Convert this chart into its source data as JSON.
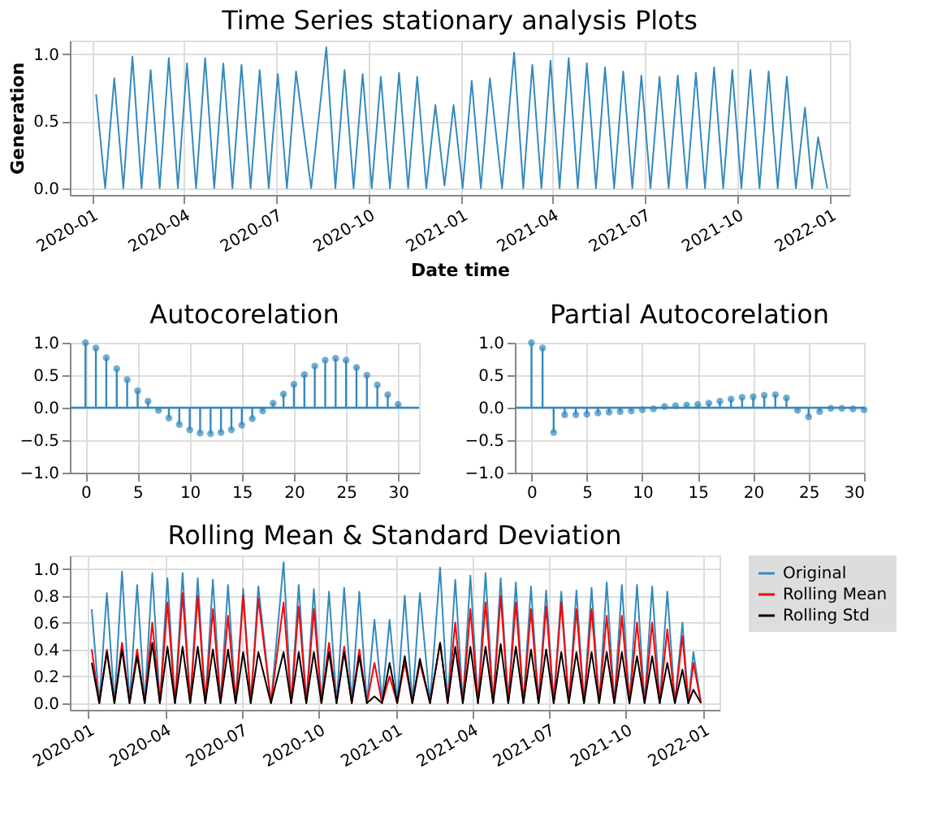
{
  "chart_data": [
    {
      "type": "line",
      "title": "Time Series stationary analysis Plots",
      "xlabel": "Date time",
      "ylabel": "Generation",
      "x": [
        "2020-01-05",
        "2020-01-14",
        "2020-01-23",
        "2020-02-01",
        "2020-02-10",
        "2020-02-19",
        "2020-02-28",
        "2020-03-08",
        "2020-03-17",
        "2020-03-26",
        "2020-04-04",
        "2020-04-13",
        "2020-04-22",
        "2020-05-01",
        "2020-05-10",
        "2020-05-19",
        "2020-05-28",
        "2020-06-06",
        "2020-06-15",
        "2020-06-24",
        "2020-07-03",
        "2020-07-12",
        "2020-07-21",
        "2020-08-05",
        "2020-08-20",
        "2020-08-29",
        "2020-09-07",
        "2020-09-16",
        "2020-09-25",
        "2020-10-04",
        "2020-10-13",
        "2020-10-22",
        "2020-10-31",
        "2020-11-09",
        "2020-11-18",
        "2020-11-27",
        "2020-12-06",
        "2020-12-15",
        "2020-12-24",
        "2021-01-02",
        "2021-01-11",
        "2021-01-20",
        "2021-01-29",
        "2021-02-10",
        "2021-02-22",
        "2021-03-03",
        "2021-03-12",
        "2021-03-21",
        "2021-03-30",
        "2021-04-08",
        "2021-04-17",
        "2021-04-26",
        "2021-05-05",
        "2021-05-14",
        "2021-05-23",
        "2021-06-01",
        "2021-06-10",
        "2021-06-19",
        "2021-06-28",
        "2021-07-07",
        "2021-07-16",
        "2021-07-25",
        "2021-08-03",
        "2021-08-12",
        "2021-08-21",
        "2021-08-30",
        "2021-09-08",
        "2021-09-17",
        "2021-09-26",
        "2021-10-05",
        "2021-10-14",
        "2021-10-23",
        "2021-11-01",
        "2021-11-10",
        "2021-11-19",
        "2021-11-28",
        "2021-12-07",
        "2021-12-14",
        "2021-12-20",
        "2021-12-29"
      ],
      "series": [
        {
          "color": "#348abd",
          "values": [
            0.7,
            0,
            0.82,
            0,
            0.98,
            0,
            0.88,
            0,
            0.97,
            0,
            0.93,
            0,
            0.97,
            0,
            0.93,
            0,
            0.92,
            0,
            0.88,
            0,
            0.85,
            0,
            0.87,
            0,
            1.05,
            0,
            0.88,
            0,
            0.85,
            0,
            0.83,
            0,
            0.86,
            0,
            0.83,
            0,
            0.62,
            0.02,
            0.62,
            0,
            0.8,
            0,
            0.82,
            0,
            1.01,
            0,
            0.92,
            0,
            0.95,
            0,
            0.97,
            0,
            0.93,
            0,
            0.9,
            0,
            0.87,
            0,
            0.84,
            0,
            0.83,
            0,
            0.84,
            0,
            0.86,
            0,
            0.9,
            0,
            0.88,
            0,
            0.88,
            0,
            0.87,
            0,
            0.83,
            0,
            0.6,
            0,
            0.38,
            0
          ]
        }
      ],
      "xlim": [
        "2019-12-10",
        "2022-01-20"
      ],
      "xticks": [
        "2020-01",
        "2020-04",
        "2020-07",
        "2020-10",
        "2021-01",
        "2021-04",
        "2021-07",
        "2021-10",
        "2022-01"
      ],
      "ylim": [
        -0.05,
        1.1
      ],
      "yticks": [
        {
          "value": 0,
          "label": "0.0"
        },
        0.5,
        {
          "value": 1,
          "label": "1.0"
        }
      ],
      "grid": true,
      "line_style": "solid",
      "marker": "none"
    },
    {
      "type": "lollipop",
      "title": "Autocorelation",
      "x": [
        0,
        1,
        2,
        3,
        4,
        5,
        6,
        7,
        8,
        9,
        10,
        11,
        12,
        13,
        14,
        15,
        16,
        17,
        18,
        19,
        20,
        21,
        22,
        23,
        24,
        25,
        26,
        27,
        28,
        29,
        30
      ],
      "series": [
        {
          "color": "#348abd",
          "values": [
            1.0,
            0.92,
            0.77,
            0.6,
            0.43,
            0.26,
            0.1,
            -0.04,
            -0.16,
            -0.26,
            -0.34,
            -0.39,
            -0.4,
            -0.38,
            -0.34,
            -0.27,
            -0.17,
            -0.05,
            0.07,
            0.21,
            0.36,
            0.51,
            0.64,
            0.73,
            0.76,
            0.73,
            0.62,
            0.5,
            0.35,
            0.2,
            0.05
          ]
        }
      ],
      "xlim": [
        -1.5,
        32
      ],
      "xticks": [
        0,
        5,
        10,
        15,
        20,
        25,
        30
      ],
      "ylim": [
        -1.0,
        1.0
      ],
      "yticks": [
        {
          "value": -1,
          "label": "−1.0"
        },
        {
          "value": -0.5,
          "label": "−0.5"
        },
        {
          "value": 0,
          "label": "0.0"
        },
        0.5,
        {
          "value": 1,
          "label": "1.0"
        }
      ],
      "ref_lines": [
        {
          "axis": "y",
          "value": 0,
          "color": "#348abd"
        }
      ],
      "grid": true,
      "marker": "circle"
    },
    {
      "type": "lollipop",
      "title": "Partial Autocorelation",
      "x": [
        0,
        1,
        2,
        3,
        4,
        5,
        6,
        7,
        8,
        9,
        10,
        11,
        12,
        13,
        14,
        15,
        16,
        17,
        18,
        19,
        20,
        21,
        22,
        23,
        24,
        25,
        26,
        27,
        28,
        29,
        30
      ],
      "series": [
        {
          "color": "#348abd",
          "values": [
            1.0,
            0.92,
            -0.38,
            -0.11,
            -0.11,
            -0.1,
            -0.08,
            -0.07,
            -0.06,
            -0.05,
            -0.03,
            -0.02,
            0.02,
            0.03,
            0.04,
            0.05,
            0.07,
            0.1,
            0.13,
            0.16,
            0.17,
            0.19,
            0.2,
            0.15,
            -0.04,
            -0.14,
            -0.06,
            -0.01,
            -0.01,
            -0.02,
            -0.03
          ]
        }
      ],
      "xlim": [
        -1.5,
        30
      ],
      "xticks": [
        0,
        5,
        10,
        15,
        20,
        25,
        30
      ],
      "ylim": [
        -1.0,
        1.0
      ],
      "yticks": [
        {
          "value": -1,
          "label": "−1.0"
        },
        {
          "value": -0.5,
          "label": "−0.5"
        },
        {
          "value": 0,
          "label": "0.0"
        },
        0.5,
        {
          "value": 1,
          "label": "1.0"
        }
      ],
      "ref_lines": [
        {
          "axis": "y",
          "value": 0,
          "color": "#348abd"
        }
      ],
      "grid": true,
      "marker": "circle"
    },
    {
      "type": "line",
      "title": "Rolling Mean & Standard Deviation",
      "x": [
        "2020-01-05",
        "2020-01-14",
        "2020-01-23",
        "2020-02-01",
        "2020-02-10",
        "2020-02-19",
        "2020-02-28",
        "2020-03-08",
        "2020-03-17",
        "2020-03-26",
        "2020-04-04",
        "2020-04-13",
        "2020-04-22",
        "2020-05-01",
        "2020-05-10",
        "2020-05-19",
        "2020-05-28",
        "2020-06-06",
        "2020-06-15",
        "2020-06-24",
        "2020-07-03",
        "2020-07-12",
        "2020-07-21",
        "2020-08-05",
        "2020-08-20",
        "2020-08-29",
        "2020-09-07",
        "2020-09-16",
        "2020-09-25",
        "2020-10-04",
        "2020-10-13",
        "2020-10-22",
        "2020-10-31",
        "2020-11-09",
        "2020-11-18",
        "2020-11-27",
        "2020-12-06",
        "2020-12-15",
        "2020-12-24",
        "2021-01-02",
        "2021-01-11",
        "2021-01-20",
        "2021-01-29",
        "2021-02-10",
        "2021-02-22",
        "2021-03-03",
        "2021-03-12",
        "2021-03-21",
        "2021-03-30",
        "2021-04-08",
        "2021-04-17",
        "2021-04-26",
        "2021-05-05",
        "2021-05-14",
        "2021-05-23",
        "2021-06-01",
        "2021-06-10",
        "2021-06-19",
        "2021-06-28",
        "2021-07-07",
        "2021-07-16",
        "2021-07-25",
        "2021-08-03",
        "2021-08-12",
        "2021-08-21",
        "2021-08-30",
        "2021-09-08",
        "2021-09-17",
        "2021-09-26",
        "2021-10-05",
        "2021-10-14",
        "2021-10-23",
        "2021-11-01",
        "2021-11-10",
        "2021-11-19",
        "2021-11-28",
        "2021-12-07",
        "2021-12-14",
        "2021-12-20",
        "2021-12-29"
      ],
      "series": [
        {
          "name": "Original",
          "color": "#348abd",
          "values": [
            0.7,
            0,
            0.82,
            0,
            0.98,
            0,
            0.88,
            0,
            0.97,
            0,
            0.93,
            0,
            0.97,
            0,
            0.93,
            0,
            0.92,
            0,
            0.88,
            0,
            0.85,
            0,
            0.87,
            0,
            1.05,
            0,
            0.88,
            0,
            0.85,
            0,
            0.83,
            0,
            0.86,
            0,
            0.83,
            0,
            0.62,
            0.02,
            0.62,
            0,
            0.8,
            0,
            0.82,
            0,
            1.01,
            0,
            0.92,
            0,
            0.95,
            0,
            0.97,
            0,
            0.93,
            0,
            0.9,
            0,
            0.87,
            0,
            0.84,
            0,
            0.83,
            0,
            0.84,
            0,
            0.86,
            0,
            0.9,
            0,
            0.88,
            0,
            0.88,
            0,
            0.87,
            0,
            0.83,
            0,
            0.6,
            0,
            0.38,
            0
          ]
        },
        {
          "name": "Rolling Mean",
          "color": "#ff0000",
          "values": [
            0.4,
            0,
            0.4,
            0,
            0.45,
            0,
            0.4,
            0,
            0.6,
            0,
            0.75,
            0,
            0.82,
            0,
            0.8,
            0,
            0.7,
            0,
            0.65,
            0,
            0.8,
            0,
            0.78,
            0,
            0.75,
            0,
            0.72,
            0,
            0.7,
            0,
            0.45,
            0,
            0.42,
            0,
            0.4,
            0,
            0.3,
            0,
            0.2,
            0,
            0.3,
            0,
            0.3,
            0,
            0.45,
            0,
            0.6,
            0,
            0.7,
            0,
            0.75,
            0,
            0.8,
            0,
            0.75,
            0,
            0.7,
            0,
            0.72,
            0,
            0.75,
            0,
            0.7,
            0,
            0.7,
            0,
            0.65,
            0,
            0.65,
            0,
            0.6,
            0,
            0.6,
            0,
            0.55,
            0,
            0.5,
            0,
            0.3,
            0
          ]
        },
        {
          "name": "Rolling Std",
          "color": "#000000",
          "values": [
            0.3,
            0,
            0.38,
            0,
            0.4,
            0,
            0.35,
            0,
            0.45,
            0,
            0.42,
            0,
            0.42,
            0,
            0.42,
            0,
            0.4,
            0,
            0.4,
            0,
            0.38,
            0,
            0.38,
            0,
            0.38,
            0,
            0.38,
            0,
            0.38,
            0,
            0.38,
            0,
            0.38,
            0,
            0.35,
            0,
            0.05,
            0,
            0.3,
            0,
            0.35,
            0,
            0.33,
            0,
            0.45,
            0,
            0.42,
            0,
            0.42,
            0,
            0.42,
            0,
            0.44,
            0,
            0.42,
            0,
            0.4,
            0,
            0.4,
            0,
            0.38,
            0,
            0.38,
            0,
            0.38,
            0,
            0.38,
            0,
            0.38,
            0,
            0.35,
            0,
            0.35,
            0,
            0.3,
            0,
            0.25,
            0,
            0.1,
            0
          ]
        }
      ],
      "xlim": [
        "2019-12-10",
        "2022-01-20"
      ],
      "xticks": [
        "2020-01",
        "2020-04",
        "2020-07",
        "2020-10",
        "2021-01",
        "2021-04",
        "2021-07",
        "2021-10",
        "2022-01"
      ],
      "ylim": [
        -0.05,
        1.1
      ],
      "yticks": [
        {
          "value": 0,
          "label": "0.0"
        },
        0.2,
        0.4,
        0.6,
        0.8,
        {
          "value": 1,
          "label": "1.0"
        }
      ],
      "grid": true,
      "legend": "right",
      "line_style": "solid",
      "marker": "none"
    }
  ]
}
